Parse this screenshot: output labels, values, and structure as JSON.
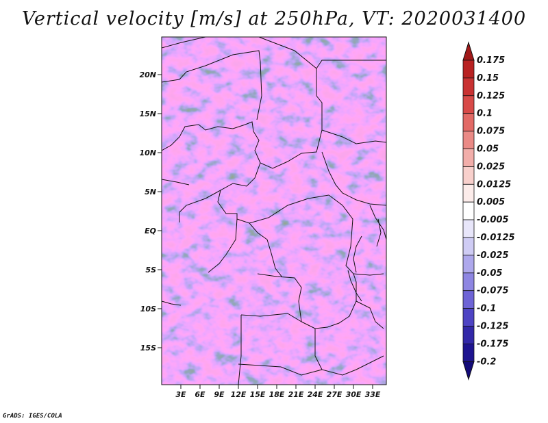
{
  "title": "Vertical velocity [m/s] at 250hPa, VT: 2020031400",
  "credit": "GrADS: IGES/COLA",
  "map": {
    "variable": "Vertical velocity",
    "units": "m/s",
    "level": "250hPa",
    "valid_time": "2020031400",
    "lon_range": [
      0,
      35
    ],
    "lat_range": [
      -20,
      24
    ],
    "lat_labels": [
      "20N",
      "15N",
      "10N",
      "5N",
      "EQ",
      "5S",
      "10S",
      "15S"
    ],
    "lon_labels": [
      "3E",
      "6E",
      "9E",
      "12E",
      "15E",
      "18E",
      "21E",
      "24E",
      "27E",
      "30E",
      "33E"
    ]
  },
  "colorbar": {
    "labels": [
      "0.175",
      "0.15",
      "0.125",
      "0.1",
      "0.075",
      "0.05",
      "0.025",
      "0.0125",
      "0.005",
      "-0.005",
      "-0.0125",
      "-0.025",
      "-0.05",
      "-0.075",
      "-0.1",
      "-0.125",
      "-0.175",
      "-0.2"
    ],
    "colors": [
      "#a01818",
      "#b82222",
      "#c93232",
      "#d84a48",
      "#e26a66",
      "#ea8a86",
      "#f2aeaa",
      "#f8d0cc",
      "#fcecea",
      "#ffffff",
      "#e8e6fa",
      "#cfccf4",
      "#aea8ec",
      "#8e86e2",
      "#6e64d6",
      "#4e44c4",
      "#3228a8",
      "#1e1490",
      "#120a78"
    ]
  }
}
